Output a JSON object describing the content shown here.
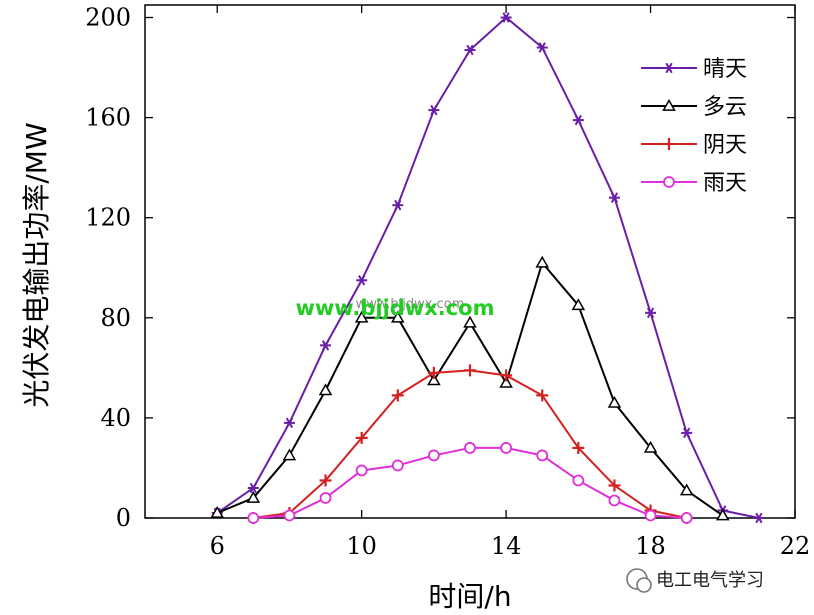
{
  "chart_data": {
    "type": "line",
    "title": "",
    "xlabel": "时间/h",
    "ylabel": "光伏发电输出功率/MW",
    "xlim": [
      4,
      22
    ],
    "ylim": [
      0,
      205
    ],
    "xticks": [
      6,
      10,
      14,
      18,
      22
    ],
    "yticks": [
      0,
      40,
      80,
      120,
      160,
      200
    ],
    "grid": false,
    "legend_position": "top-right",
    "series": [
      {
        "name": "晴天",
        "color": "#6a1fa8",
        "marker": "star",
        "x": [
          6,
          7,
          8,
          9,
          10,
          11,
          12,
          13,
          14,
          15,
          16,
          17,
          18,
          19,
          20,
          21
        ],
        "y": [
          2,
          12,
          38,
          69,
          95,
          125,
          163,
          187,
          200,
          188,
          159,
          128,
          82,
          34,
          3,
          0
        ]
      },
      {
        "name": "多云",
        "color": "#000000",
        "marker": "triangle",
        "x": [
          6,
          7,
          8,
          9,
          10,
          11,
          12,
          13,
          14,
          15,
          16,
          17,
          18,
          19,
          20
        ],
        "y": [
          2,
          8,
          25,
          51,
          80,
          80,
          55,
          78,
          54,
          102,
          85,
          46,
          28,
          11,
          1
        ]
      },
      {
        "name": "阴天",
        "color": "#d42020",
        "marker": "plus",
        "x": [
          7,
          8,
          9,
          10,
          11,
          12,
          13,
          14,
          15,
          16,
          17,
          18,
          19
        ],
        "y": [
          0,
          2,
          15,
          32,
          49,
          58,
          59,
          57,
          49,
          28,
          13,
          3,
          0
        ]
      },
      {
        "name": "雨天",
        "color": "#e02ed8",
        "marker": "circle",
        "x": [
          7,
          8,
          9,
          10,
          11,
          12,
          13,
          14,
          15,
          16,
          17,
          18,
          19
        ],
        "y": [
          0,
          1,
          8,
          19,
          21,
          25,
          28,
          28,
          25,
          15,
          7,
          1,
          0
        ]
      }
    ]
  },
  "watermark": {
    "text": "www.bjjdwx.com",
    "ghost": "www.bjjdwx.com"
  },
  "logo_caption": "电工电气学习"
}
